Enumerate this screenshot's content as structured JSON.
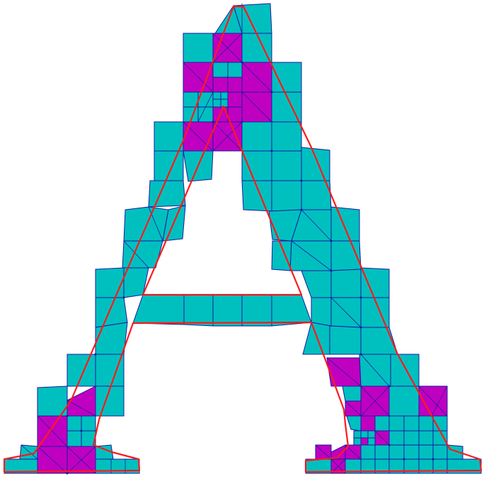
{
  "figure": {
    "description_text": "",
    "colors": {
      "background": "#ffffff",
      "cell_primary": "#00c0bf",
      "cell_refined": "#c000c0",
      "mesh_edges": "#1a1aa0",
      "boundary": "#ff1a1a"
    },
    "shape": "letter A",
    "mesh_type": "quadtree with triangulated cut cells"
  }
}
